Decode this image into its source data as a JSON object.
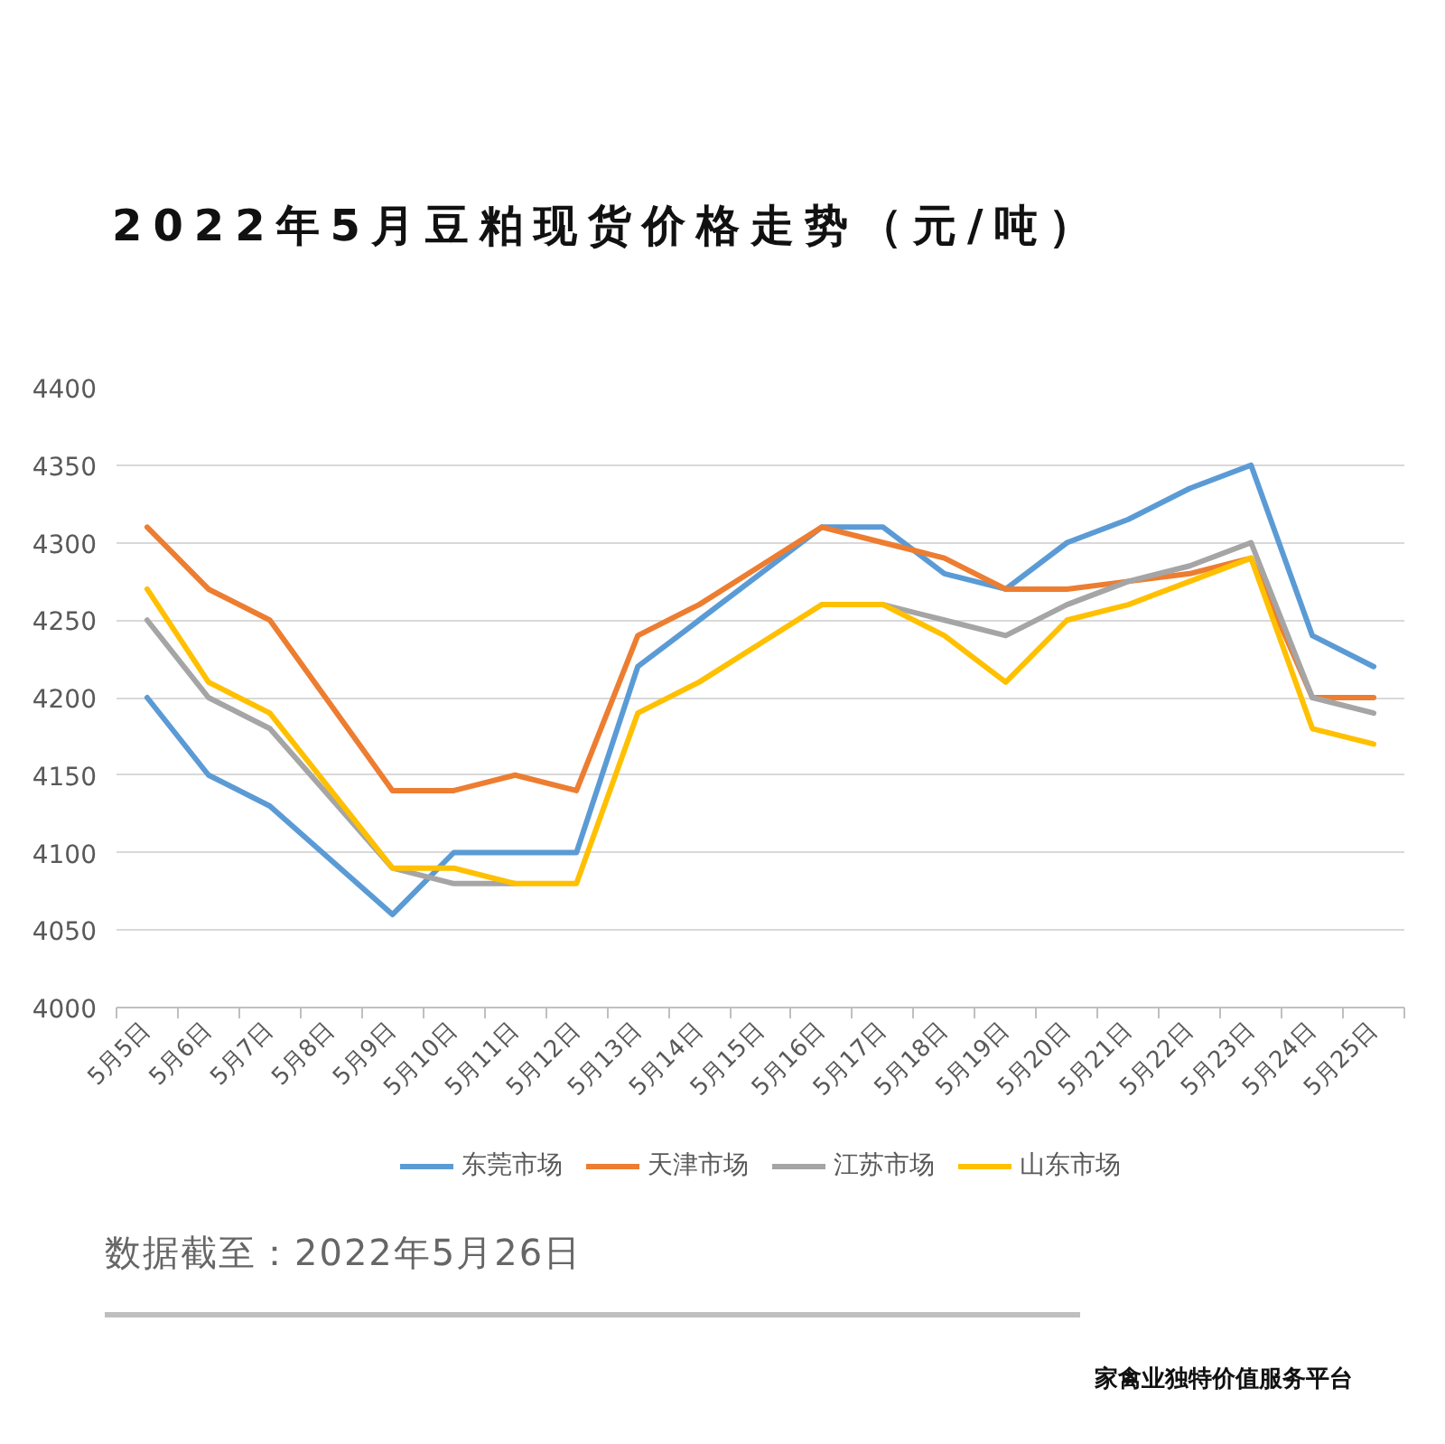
{
  "chart_data": {
    "type": "line",
    "title": "2022年5月豆粕现货价格走势（元/吨）",
    "categories": [
      "5月5日",
      "5月6日",
      "5月7日",
      "5月8日",
      "5月9日",
      "5月10日",
      "5月11日",
      "5月12日",
      "5月13日",
      "5月14日",
      "5月15日",
      "5月16日",
      "5月17日",
      "5月18日",
      "5月19日",
      "5月20日",
      "5月21日",
      "5月22日",
      "5月23日",
      "5月24日",
      "5月25日"
    ],
    "series": [
      {
        "name": "东莞市场",
        "color": "#5b9bd5",
        "values": [
          4200,
          4150,
          4130,
          4095,
          4060,
          4100,
          4100,
          4100,
          4220,
          4250,
          4280,
          4310,
          4310,
          4280,
          4270,
          4300,
          4315,
          4335,
          4350,
          4240,
          4220
        ]
      },
      {
        "name": "天津市场",
        "color": "#ed7d31",
        "values": [
          4310,
          4270,
          4250,
          4195,
          4140,
          4140,
          4150,
          4140,
          4240,
          4260,
          4285,
          4310,
          4300,
          4290,
          4270,
          4270,
          4275,
          4280,
          4290,
          4200,
          4200
        ]
      },
      {
        "name": "江苏市场",
        "color": "#a5a5a5",
        "values": [
          4250,
          4200,
          4180,
          4135,
          4090,
          4080,
          4080,
          null,
          null,
          null,
          null,
          null,
          4260,
          4250,
          4240,
          4260,
          4275,
          4285,
          4300,
          4200,
          4190
        ]
      },
      {
        "name": "山东市场",
        "color": "#ffc000",
        "values": [
          4270,
          4210,
          4190,
          4140,
          4090,
          4090,
          4080,
          4080,
          4190,
          4210,
          4235,
          4260,
          4260,
          4240,
          4210,
          4250,
          4260,
          4275,
          4290,
          4180,
          4170
        ]
      }
    ],
    "ylim": [
      4000,
      4400
    ],
    "yticks": [
      4000,
      4050,
      4100,
      4150,
      4200,
      4250,
      4300,
      4350,
      4400
    ],
    "grid": "y",
    "legend": "bottom",
    "annotations": [
      "数据截至：2022年5月26日",
      "家禽业独特价值服务平台"
    ]
  }
}
